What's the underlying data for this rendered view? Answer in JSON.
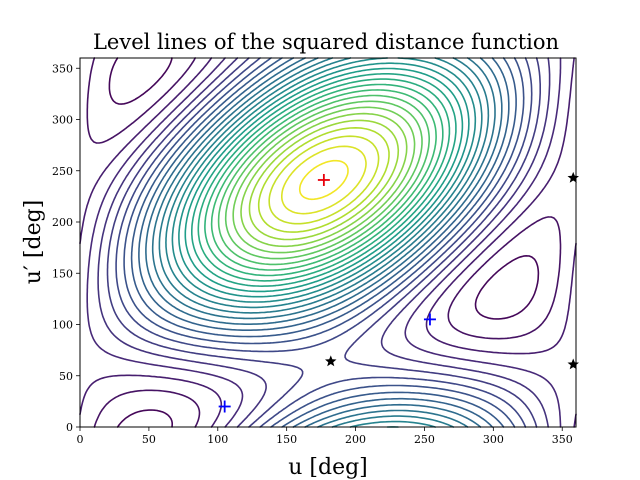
{
  "chart_data": {
    "type": "contour",
    "title": "Level lines of the squared distance function",
    "xlabel": "u [deg]",
    "ylabel": "u′ [deg]",
    "xlim": [
      0,
      360
    ],
    "ylim": [
      0,
      360
    ],
    "xticks": [
      0,
      50,
      100,
      150,
      200,
      250,
      300,
      350
    ],
    "yticks": [
      0,
      50,
      100,
      150,
      200,
      250,
      300,
      350
    ],
    "grid": false,
    "colormap": "viridis",
    "level_count": 30,
    "markers": [
      {
        "kind": "plus",
        "color": "#e8000b",
        "x": 177,
        "y": 241
      },
      {
        "kind": "plus",
        "color": "#0000ff",
        "x": 105,
        "y": 20
      },
      {
        "kind": "plus",
        "color": "#0000ff",
        "x": 254,
        "y": 105
      },
      {
        "kind": "star",
        "color": "#000000",
        "x": 182,
        "y": 64
      },
      {
        "kind": "star",
        "color": "#000000",
        "x": 358,
        "y": 243
      },
      {
        "kind": "star",
        "color": "#000000",
        "x": 358,
        "y": 61
      }
    ]
  }
}
